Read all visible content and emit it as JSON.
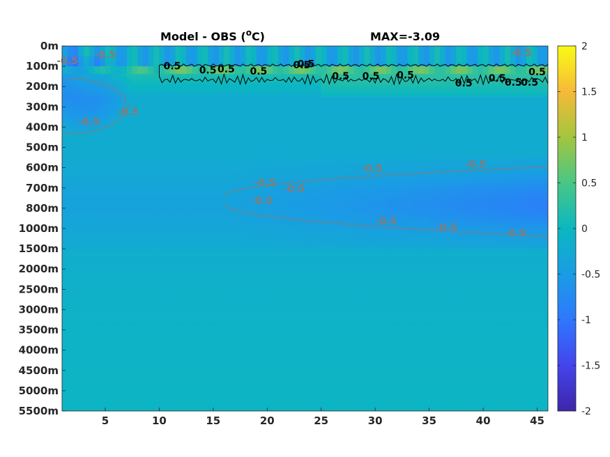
{
  "chart_data": {
    "type": "heatmap",
    "title": "Model - OBS (",
    "title_unit_super": "o",
    "title_unit_tail": "C)",
    "max_label": "MAX=-3.09",
    "x_ticks": [
      5,
      10,
      15,
      20,
      25,
      30,
      35,
      40,
      45
    ],
    "x_range": [
      1,
      46
    ],
    "y_ticks": [
      "0m",
      "100m",
      "200m",
      "300m",
      "400m",
      "500m",
      "600m",
      "700m",
      "800m",
      "1000m",
      "1500m",
      "2000m",
      "2500m",
      "3000m",
      "3500m",
      "4000m",
      "4500m",
      "5000m",
      "5500m"
    ],
    "colorbar": {
      "range": [
        -2,
        2
      ],
      "ticks": [
        2,
        1.5,
        1,
        0.5,
        0,
        -0.5,
        -1,
        -1.5,
        -2
      ],
      "tick_labels": [
        "2",
        "1.5",
        "1",
        "0.5",
        "0",
        "-0.5",
        "-1",
        "-1.5",
        "-2"
      ]
    },
    "contour_levels": [
      0.5,
      -0.5
    ],
    "positive_labels": [
      {
        "x": 11.2,
        "text": "0.5"
      },
      {
        "x": 14.5,
        "text": "0.5"
      },
      {
        "x": 16.2,
        "text": "0.5"
      },
      {
        "x": 19.2,
        "text": "0.5"
      },
      {
        "x": 23.2,
        "text": "0.5"
      },
      {
        "x": 23.6,
        "text": "0.5"
      },
      {
        "x": 26.8,
        "text": "0.5"
      },
      {
        "x": 29.6,
        "text": "0.5"
      },
      {
        "x": 32.8,
        "text": "0.5"
      },
      {
        "x": 38.2,
        "text": "0.5"
      },
      {
        "x": 41.3,
        "text": "0.5"
      },
      {
        "x": 42.8,
        "text": "0.5"
      },
      {
        "x": 44.3,
        "text": "0.5"
      },
      {
        "x": 45.0,
        "text": "0.5"
      }
    ],
    "negative_labels": [
      {
        "x": 1.5,
        "d": 0.9,
        "text": "-0.5"
      },
      {
        "x": 5.0,
        "d": 0.6,
        "text": "-0.5"
      },
      {
        "x": 3.5,
        "d": 3.9,
        "text": "-0.5"
      },
      {
        "x": 7.1,
        "d": 3.4,
        "text": "-0.5"
      },
      {
        "x": 19.8,
        "d": 6.9,
        "text": "-0.5"
      },
      {
        "x": 19.5,
        "d": 7.8,
        "text": "-0.5"
      },
      {
        "x": 22.5,
        "d": 7.2,
        "text": "-0.5"
      },
      {
        "x": 29.7,
        "d": 6.2,
        "text": "-0.5"
      },
      {
        "x": 31.0,
        "d": 8.8,
        "text": "-0.5"
      },
      {
        "x": 36.6,
        "d": 9.1,
        "text": "-0.5"
      },
      {
        "x": 39.3,
        "d": 6.0,
        "text": "-0.5"
      },
      {
        "x": 43.0,
        "d": 9.4,
        "text": "-0.5"
      },
      {
        "x": 43.5,
        "d": 0.5,
        "text": "-0.5"
      }
    ]
  }
}
